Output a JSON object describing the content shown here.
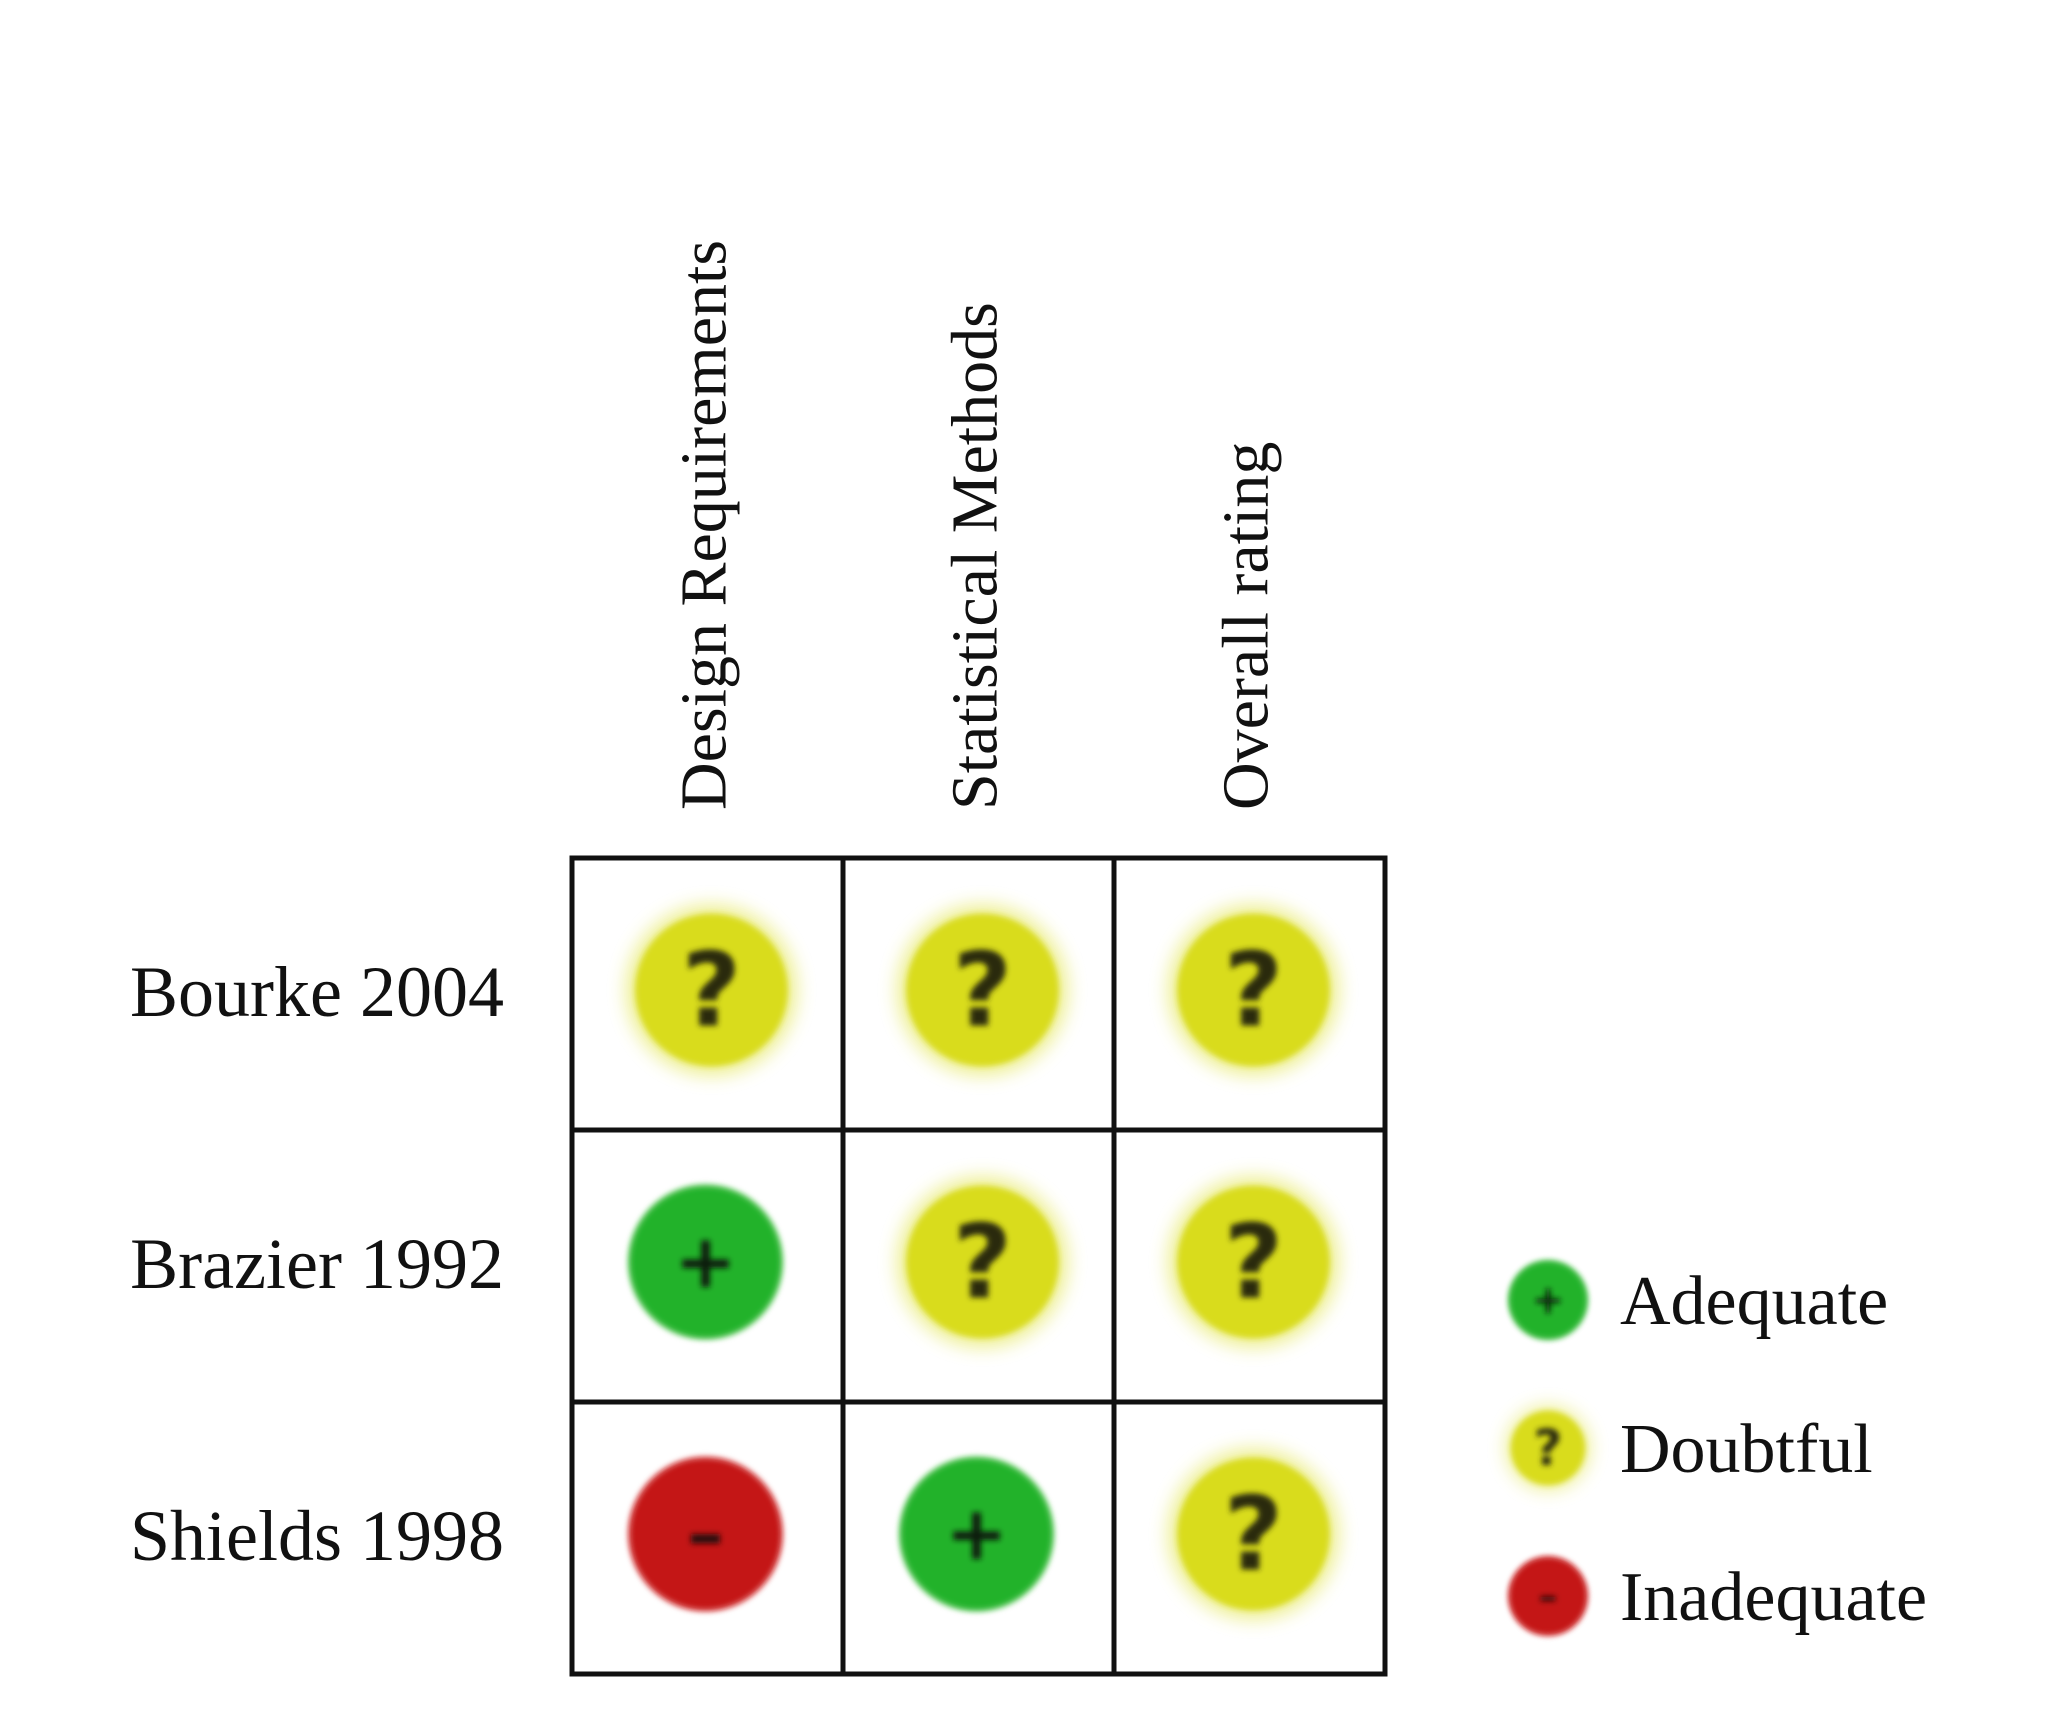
{
  "chart_data": {
    "type": "table",
    "columns": [
      "Design Requirements",
      "Statistical Methods",
      "Overall rating"
    ],
    "rows": [
      {
        "label": "Bourke 2004",
        "values": [
          "doubtful",
          "doubtful",
          "doubtful"
        ]
      },
      {
        "label": "Brazier 1992",
        "values": [
          "adequate",
          "doubtful",
          "doubtful"
        ]
      },
      {
        "label": "Shields 1998",
        "values": [
          "inadequate",
          "adequate",
          "doubtful"
        ]
      }
    ],
    "ratings": {
      "adequate": {
        "label": "Adequate",
        "symbol": "+",
        "color": "#22b22a",
        "glow": "#6fd06a",
        "ink": "#0a1a0a"
      },
      "doubtful": {
        "label": "Doubtful",
        "symbol": "?",
        "color": "#d9dc1e",
        "glow": "#ecee8a",
        "ink": "#2a2a10"
      },
      "inadequate": {
        "label": "Inadequate",
        "symbol": "–",
        "color": "#c41818",
        "glow": "#e26a6a",
        "ink": "#2a0a0a"
      }
    },
    "legend": {
      "position": "right",
      "order": [
        "adequate",
        "doubtful",
        "inadequate"
      ]
    }
  }
}
